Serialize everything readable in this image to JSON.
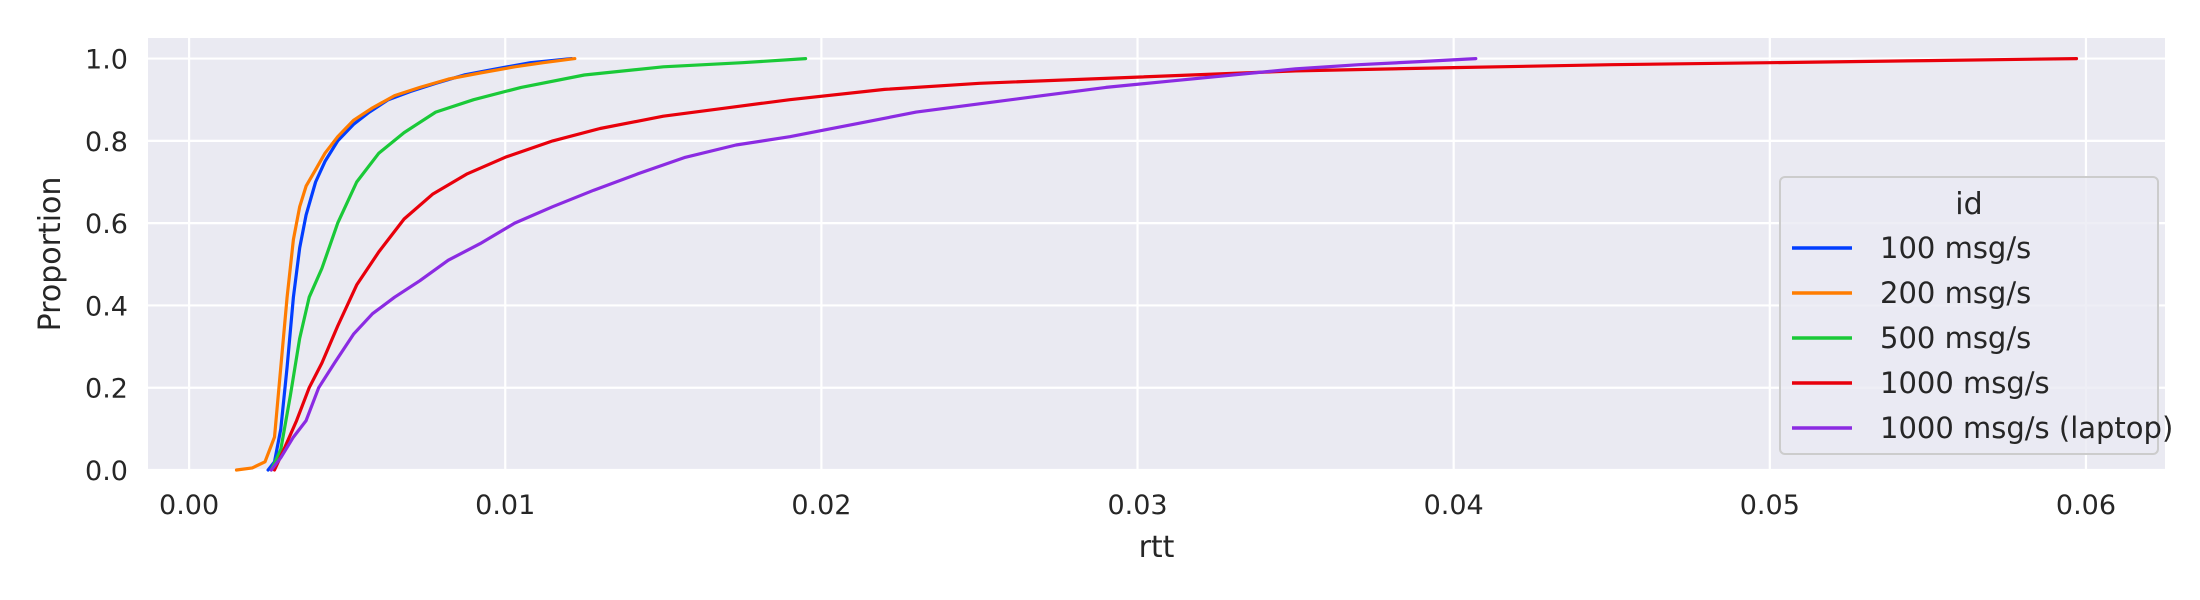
{
  "chart_data": {
    "type": "line",
    "title": "",
    "xlabel": "rtt",
    "ylabel": "Proportion",
    "xlim": [
      -0.0013,
      0.0625
    ],
    "ylim": [
      0.0,
      1.05
    ],
    "x_ticks": [
      0.0,
      0.01,
      0.02,
      0.03,
      0.04,
      0.05,
      0.06
    ],
    "x_tick_labels": [
      "0.00",
      "0.01",
      "0.02",
      "0.03",
      "0.04",
      "0.05",
      "0.06"
    ],
    "y_ticks": [
      0.0,
      0.2,
      0.4,
      0.6,
      0.8,
      1.0
    ],
    "y_tick_labels": [
      "0.0",
      "0.2",
      "0.4",
      "0.6",
      "0.8",
      "1.0"
    ],
    "grid": true,
    "legend": {
      "title": "id",
      "placement": "lower-right"
    },
    "series": [
      {
        "name": "100 msg/s",
        "color": "#023eff",
        "x": [
          0.0025,
          0.0027,
          0.0029,
          0.0031,
          0.0033,
          0.0035,
          0.0037,
          0.004,
          0.0043,
          0.0047,
          0.0052,
          0.0057,
          0.0063,
          0.007,
          0.0078,
          0.0087,
          0.0097,
          0.0108,
          0.0121
        ],
        "y": [
          0.0,
          0.02,
          0.1,
          0.25,
          0.42,
          0.54,
          0.62,
          0.7,
          0.75,
          0.8,
          0.84,
          0.87,
          0.9,
          0.92,
          0.94,
          0.96,
          0.975,
          0.99,
          1.0
        ]
      },
      {
        "name": "200 msg/s",
        "color": "#ff7c00",
        "x": [
          0.0015,
          0.002,
          0.0024,
          0.0027,
          0.0029,
          0.0031,
          0.0033,
          0.0035,
          0.0037,
          0.004,
          0.0043,
          0.0047,
          0.0052,
          0.0058,
          0.0065,
          0.0073,
          0.0082,
          0.0092,
          0.0103,
          0.0112,
          0.0122
        ],
        "y": [
          0.0,
          0.005,
          0.02,
          0.08,
          0.25,
          0.42,
          0.56,
          0.64,
          0.69,
          0.73,
          0.77,
          0.81,
          0.85,
          0.88,
          0.91,
          0.93,
          0.95,
          0.965,
          0.98,
          0.99,
          1.0
        ]
      },
      {
        "name": "500 msg/s",
        "color": "#1ac938",
        "x": [
          0.0026,
          0.0029,
          0.0032,
          0.0035,
          0.0038,
          0.0042,
          0.0047,
          0.0053,
          0.006,
          0.0068,
          0.0078,
          0.009,
          0.0105,
          0.0125,
          0.015,
          0.0175,
          0.0195
        ],
        "y": [
          0.0,
          0.05,
          0.18,
          0.32,
          0.42,
          0.49,
          0.6,
          0.7,
          0.77,
          0.82,
          0.87,
          0.9,
          0.93,
          0.96,
          0.98,
          0.99,
          1.0
        ]
      },
      {
        "name": "1000 msg/s",
        "color": "#e8000b",
        "x": [
          0.0027,
          0.003,
          0.0034,
          0.0038,
          0.0042,
          0.0047,
          0.0053,
          0.006,
          0.0068,
          0.0077,
          0.0088,
          0.01,
          0.0115,
          0.013,
          0.015,
          0.017,
          0.019,
          0.022,
          0.025,
          0.03,
          0.035,
          0.04,
          0.045,
          0.05,
          0.055,
          0.0597
        ],
        "y": [
          0.0,
          0.05,
          0.12,
          0.2,
          0.26,
          0.35,
          0.45,
          0.53,
          0.61,
          0.67,
          0.72,
          0.76,
          0.8,
          0.83,
          0.86,
          0.88,
          0.9,
          0.925,
          0.94,
          0.955,
          0.97,
          0.978,
          0.985,
          0.99,
          0.995,
          1.0
        ]
      },
      {
        "name": "1000 msg/s (laptop)",
        "color": "#8b2be2",
        "x": [
          0.0026,
          0.0029,
          0.0033,
          0.0037,
          0.0041,
          0.0046,
          0.0052,
          0.0058,
          0.0065,
          0.0073,
          0.0082,
          0.0092,
          0.0103,
          0.0115,
          0.0128,
          0.0142,
          0.0157,
          0.0173,
          0.019,
          0.021,
          0.023,
          0.025,
          0.027,
          0.029,
          0.031,
          0.033,
          0.035,
          0.037,
          0.039,
          0.0407
        ],
        "y": [
          0.0,
          0.03,
          0.08,
          0.12,
          0.2,
          0.26,
          0.33,
          0.38,
          0.42,
          0.46,
          0.51,
          0.55,
          0.6,
          0.64,
          0.68,
          0.72,
          0.76,
          0.79,
          0.81,
          0.84,
          0.87,
          0.89,
          0.91,
          0.93,
          0.945,
          0.96,
          0.975,
          0.985,
          0.993,
          1.0
        ]
      }
    ]
  }
}
